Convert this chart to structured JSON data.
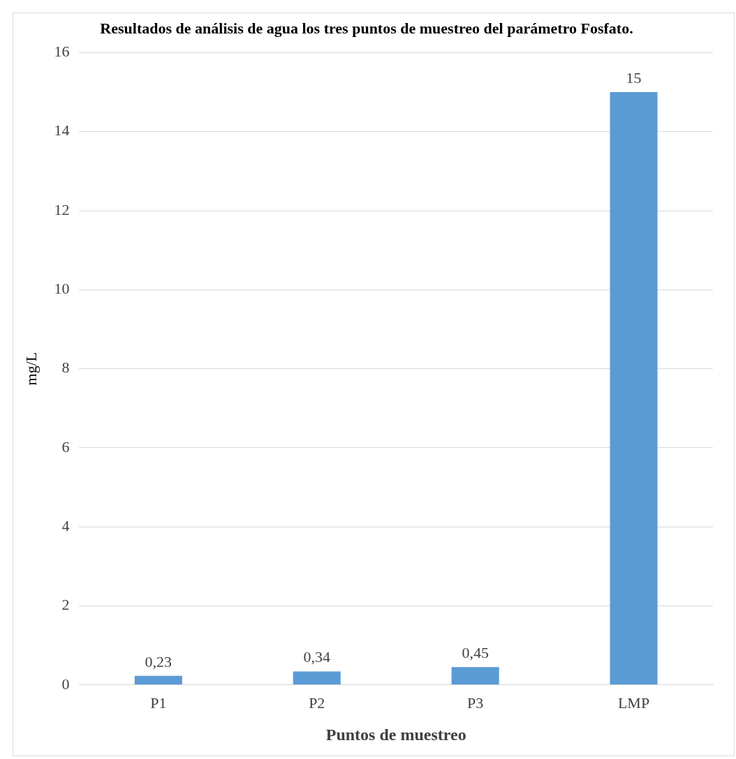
{
  "chart_data": {
    "type": "bar",
    "title": "Resultados de análisis de agua los tres puntos de muestreo del parámetro Fosfato.",
    "xlabel": "Puntos de muestreo",
    "ylabel": "mg/L",
    "categories": [
      "P1",
      "P2",
      "P3",
      "LMP"
    ],
    "values": [
      0.23,
      0.34,
      0.45,
      15
    ],
    "color": "#5b9bd5",
    "value_labels": [
      "0,23",
      "0,34",
      "0,45",
      "15"
    ],
    "ylim": [
      0,
      16
    ],
    "yticks": [
      0,
      2,
      4,
      6,
      8,
      10,
      12,
      14,
      16
    ],
    "grid": "y",
    "legend": false
  }
}
